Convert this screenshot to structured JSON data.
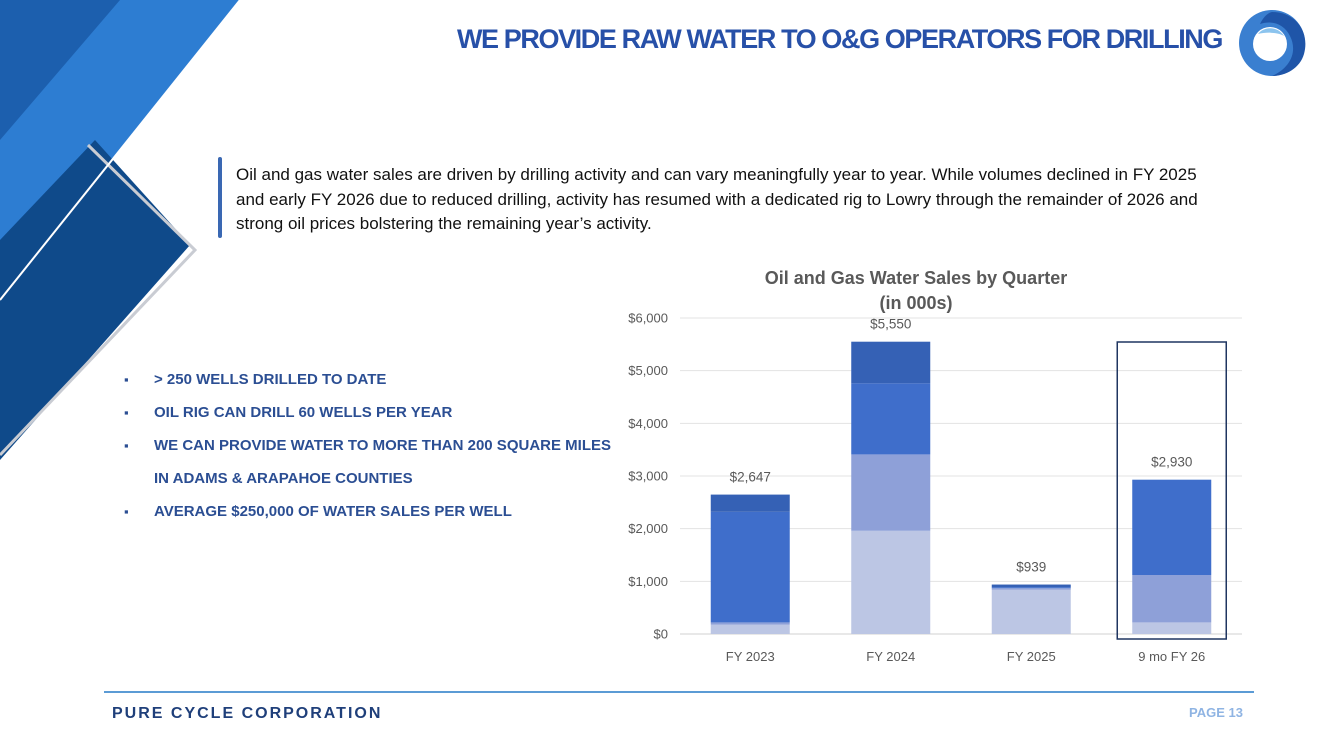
{
  "slide": {
    "title": "WE PROVIDE RAW WATER TO O&G OPERATORS FOR DRILLING",
    "intro": "Oil and gas water sales are driven by drilling activity and can vary meaningfully year to year. While volumes declined in FY 2025 and early FY 2026 due to reduced drilling, activity has resumed with a dedicated rig to Lowry through the remainder of 2026 and strong oil prices bolstering the remaining year’s activity.",
    "bullets": [
      "> 250 WELLS DRILLED TO DATE",
      "OIL RIG CAN DRILL 60 WELLS PER YEAR",
      "WE CAN PROVIDE WATER TO MORE THAN 200 SQUARE MILES IN ADAMS & ARAPAHOE COUNTIES",
      "AVERAGE $250,000 OF WATER SALES PER WELL"
    ],
    "logo_icon": "water-swirl-logo-icon",
    "colors": {
      "title": "#2750a8",
      "bullet": "#2b4e93",
      "footer_line": "#5b9bd5",
      "corner_dark": "#0f4a8a",
      "corner_light": "#2d7dd2"
    }
  },
  "footer": {
    "company": "PURE CYCLE CORPORATION",
    "page": "PAGE 13"
  },
  "chart_data": {
    "type": "bar",
    "stacked": true,
    "title": "Oil and Gas Water Sales by Quarter",
    "subtitle": "(in 000s)",
    "categories": [
      "FY 2023",
      "FY 2024",
      "FY 2025",
      "9 mo FY 26"
    ],
    "ylim": [
      0,
      6000
    ],
    "yticks": [
      0,
      1000,
      2000,
      3000,
      4000,
      5000,
      6000
    ],
    "ytick_labels": [
      "$0",
      "$1,000",
      "$2,000",
      "$3,000",
      "$4,000",
      "$5,000",
      "$6,000"
    ],
    "grid": true,
    "highlighted_category": "9 mo FY 26",
    "totals": [
      2647,
      5550,
      939,
      2930
    ],
    "total_labels": [
      "$2,647",
      "$5,550",
      "$939",
      "$2,930"
    ],
    "series": [
      {
        "color": "#bcc6e4",
        "values": [
          180,
          1960,
          840,
          220
        ]
      },
      {
        "color": "#8ea0d8",
        "values": [
          40,
          1450,
          30,
          900
        ]
      },
      {
        "color": "#3f6ecb",
        "values": [
          2100,
          1350,
          20,
          1810
        ]
      },
      {
        "color": "#3561b5",
        "values": [
          327,
          790,
          49,
          0
        ]
      }
    ]
  }
}
